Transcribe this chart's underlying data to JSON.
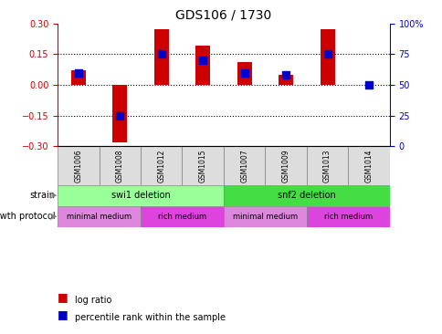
{
  "title": "GDS106 / 1730",
  "samples": [
    "GSM1006",
    "GSM1008",
    "GSM1012",
    "GSM1015",
    "GSM1007",
    "GSM1009",
    "GSM1013",
    "GSM1014"
  ],
  "log_ratios": [
    0.07,
    -0.28,
    0.27,
    0.19,
    0.11,
    0.05,
    0.27,
    0.0
  ],
  "percentile_ranks": [
    60,
    25,
    75,
    70,
    60,
    58,
    75,
    50
  ],
  "ylim_left": [
    -0.3,
    0.3
  ],
  "ylim_right": [
    0,
    100
  ],
  "yticks_left": [
    -0.3,
    -0.15,
    0,
    0.15,
    0.3
  ],
  "yticks_right": [
    0,
    25,
    50,
    75,
    100
  ],
  "bar_color": "#cc0000",
  "dot_color": "#0000cc",
  "bar_width": 0.35,
  "dot_size": 40,
  "strain_labels": [
    {
      "text": "swi1 deletion",
      "start": 0,
      "end": 3,
      "color": "#99ff99"
    },
    {
      "text": "snf2 deletion",
      "start": 4,
      "end": 7,
      "color": "#44dd44"
    }
  ],
  "growth_labels": [
    {
      "text": "minimal medium",
      "start": 0,
      "end": 1,
      "color": "#dd88dd"
    },
    {
      "text": "rich medium",
      "start": 2,
      "end": 3,
      "color": "#dd44dd"
    },
    {
      "text": "minimal medium",
      "start": 4,
      "end": 5,
      "color": "#dd88dd"
    },
    {
      "text": "rich medium",
      "start": 6,
      "end": 7,
      "color": "#dd44dd"
    }
  ],
  "left_label_color": "#cc0000",
  "right_label_color": "#0000cc",
  "grid_color": "#000000",
  "background_color": "#ffffff",
  "strain_row_label": "strain",
  "growth_row_label": "growth protocol",
  "legend_log": "log ratio",
  "legend_pct": "percentile rank within the sample"
}
